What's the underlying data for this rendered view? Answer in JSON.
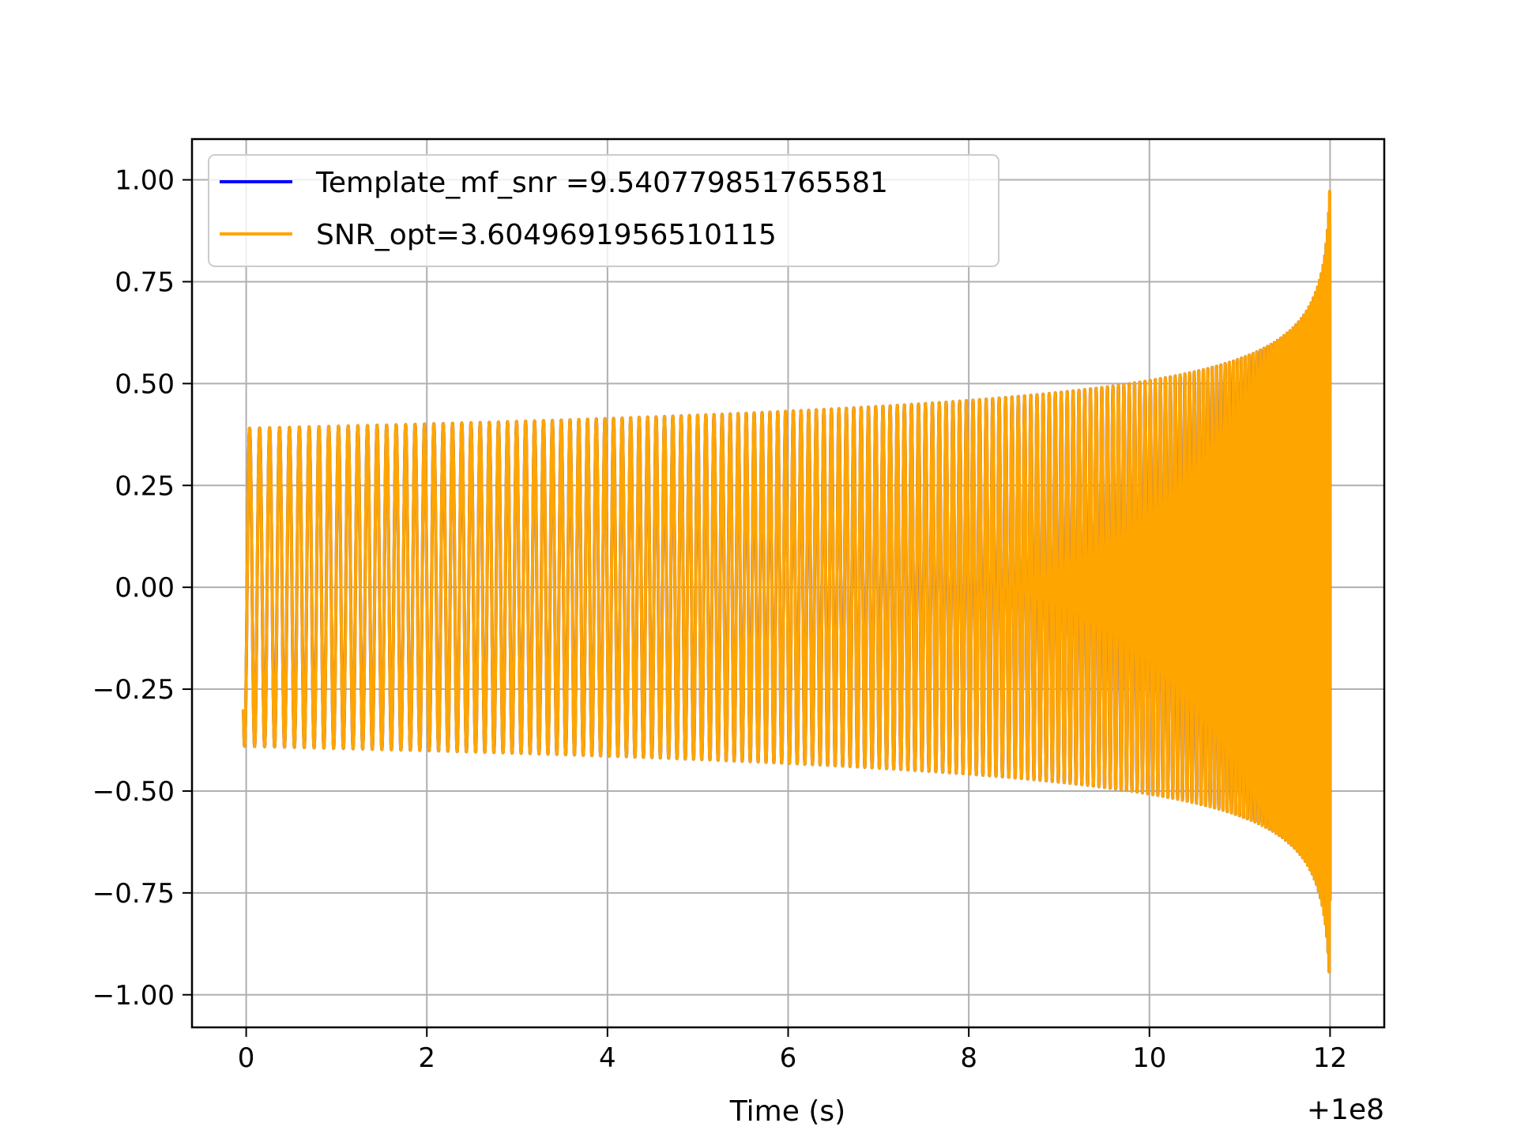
{
  "chart_data": {
    "type": "line",
    "title": "",
    "xlabel": "Time (s)",
    "ylabel": "",
    "x_offset_label": "+1e8",
    "xlim": [
      -0.6,
      12.6
    ],
    "ylim": [
      -1.08,
      1.1
    ],
    "grid": true,
    "legend_position": "upper-left",
    "x_ticks": [
      0,
      2,
      4,
      6,
      8,
      10,
      12
    ],
    "x_tick_labels": [
      "0",
      "2",
      "4",
      "6",
      "8",
      "10",
      "12"
    ],
    "y_ticks": [
      -1.0,
      -0.75,
      -0.5,
      -0.25,
      0.0,
      0.25,
      0.5,
      0.75,
      1.0
    ],
    "y_tick_labels": [
      "−1.00",
      "−0.75",
      "−0.50",
      "−0.25",
      "0.00",
      "0.25",
      "0.50",
      "0.75",
      "1.00"
    ],
    "series": [
      {
        "name": "Template_mf_snr =9.540779851765581",
        "color": "#0000ff",
        "signal": "chirp",
        "t_start": -0.03,
        "t_end": 12.0,
        "start_value": -0.3,
        "amplitude_start": 0.39,
        "amplitude_end": 1.0,
        "cycles": 170
      },
      {
        "name": "SNR_opt=3.6049691956510115",
        "color": "#ffa500",
        "signal": "chirp",
        "t_start": -0.03,
        "t_end": 12.0,
        "start_value": -0.3,
        "amplitude_start": 0.39,
        "amplitude_end": 1.0,
        "cycles": 170
      }
    ]
  }
}
